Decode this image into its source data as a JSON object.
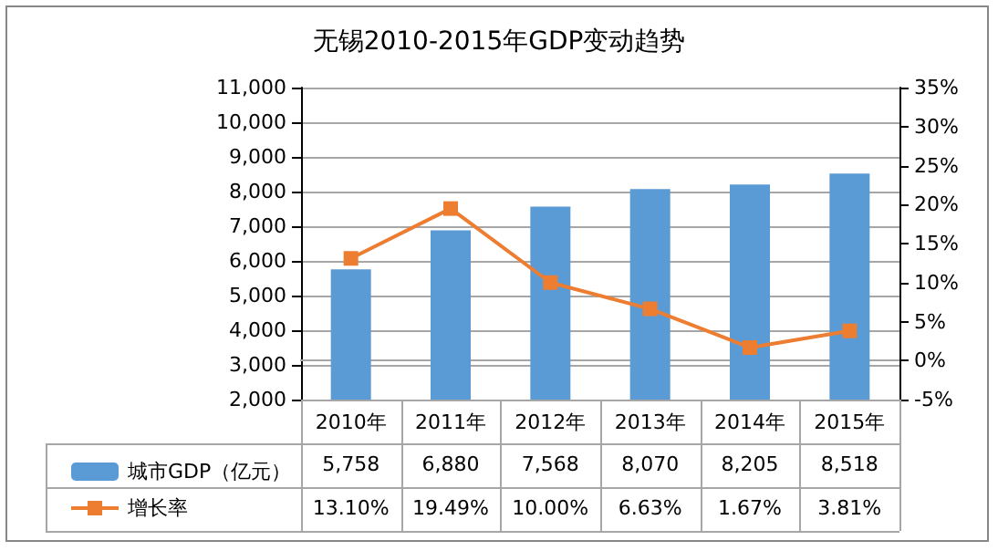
{
  "chart_data": {
    "type": "bar",
    "title": "无锡2010-2015年GDP变动趋势",
    "categories": [
      "2010年",
      "2011年",
      "2012年",
      "2013年",
      "2014年",
      "2015年"
    ],
    "series": [
      {
        "name": "城市GDP（亿元）",
        "color": "#5b9bd5",
        "values": [
          5758,
          6880,
          7568,
          8070,
          8205,
          8518
        ],
        "value_labels": [
          "5,758",
          "6,880",
          "7,568",
          "8,070",
          "8,205",
          "8,518"
        ]
      },
      {
        "name": "增长率",
        "type": "line",
        "axis": "y2",
        "color": "#ed7d31",
        "marker": "square",
        "values": [
          13.1,
          19.49,
          10.0,
          6.63,
          1.67,
          3.81
        ],
        "value_labels": [
          "13.10%",
          "19.49%",
          "10.00%",
          "6.63%",
          "1.67%",
          "3.81%"
        ]
      }
    ],
    "ylim": [
      2000,
      11000
    ],
    "yticks": [
      {
        "value": 2000,
        "label": "2,000"
      },
      {
        "value": 3000,
        "label": "3,000"
      },
      {
        "value": 4000,
        "label": "4,000"
      },
      {
        "value": 5000,
        "label": "5,000"
      },
      {
        "value": 6000,
        "label": "6,000"
      },
      {
        "value": 7000,
        "label": "7,000"
      },
      {
        "value": 8000,
        "label": "8,000"
      },
      {
        "value": 9000,
        "label": "9,000"
      },
      {
        "value": 10000,
        "label": "10,000"
      },
      {
        "value": 11000,
        "label": "11,000"
      }
    ],
    "y2lim": [
      -5,
      35
    ],
    "y2ticks": [
      {
        "value": -5,
        "label": "-5%"
      },
      {
        "value": 0,
        "label": "0%"
      },
      {
        "value": 5,
        "label": "5%"
      },
      {
        "value": 10,
        "label": "10%"
      },
      {
        "value": 15,
        "label": "15%"
      },
      {
        "value": 20,
        "label": "20%"
      },
      {
        "value": 25,
        "label": "25%"
      },
      {
        "value": 30,
        "label": "30%"
      },
      {
        "value": 35,
        "label": "35%"
      }
    ],
    "grid": "y",
    "legend": "bottom left"
  }
}
